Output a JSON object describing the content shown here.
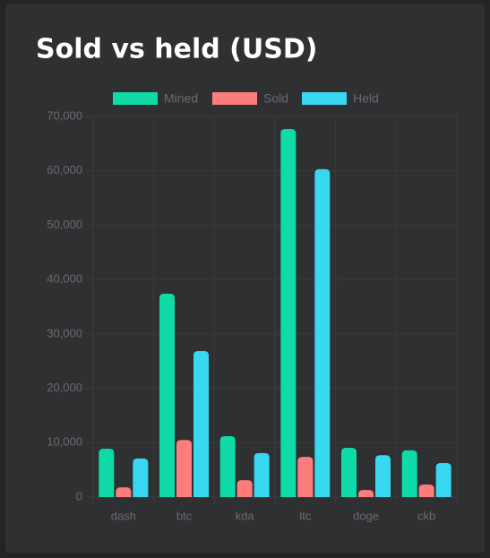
{
  "chart_data": {
    "type": "bar",
    "title": "Sold vs held (USD)",
    "categories": [
      "dash",
      "btc",
      "kda",
      "ltc",
      "doge",
      "ckb"
    ],
    "series": [
      {
        "name": "Mined",
        "color": "#0fdba8",
        "values": [
          8900,
          37400,
          11200,
          67700,
          9050,
          8600
        ]
      },
      {
        "name": "Sold",
        "color": "#ff7c7c",
        "values": [
          1800,
          10500,
          3100,
          7400,
          1300,
          2300
        ]
      },
      {
        "name": "Held",
        "color": "#37d8f0",
        "values": [
          7100,
          26850,
          8100,
          60300,
          7700,
          6250
        ]
      }
    ],
    "ylim": [
      0,
      70000
    ],
    "yticks": [
      0,
      {
        "value": 10000,
        "label": "10,000"
      },
      {
        "value": 20000,
        "label": "20,000"
      },
      {
        "value": 30000,
        "label": "30,000"
      },
      {
        "value": 40000,
        "label": "40,000"
      },
      {
        "value": 50000,
        "label": "50,000"
      },
      {
        "value": 60000,
        "label": "60,000"
      },
      {
        "value": 70000,
        "label": "70,000"
      }
    ],
    "grid": true,
    "legend": "top"
  }
}
